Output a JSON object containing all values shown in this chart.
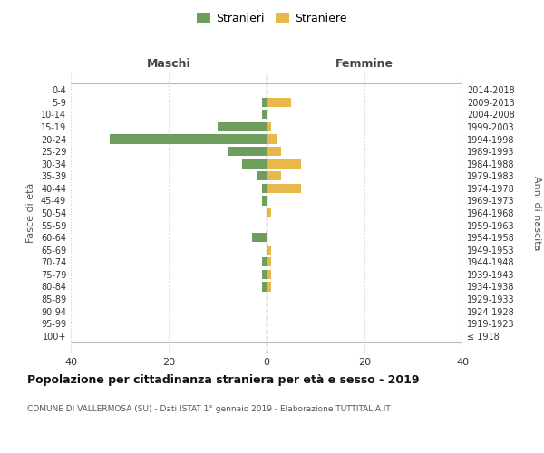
{
  "age_groups": [
    "100+",
    "95-99",
    "90-94",
    "85-89",
    "80-84",
    "75-79",
    "70-74",
    "65-69",
    "60-64",
    "55-59",
    "50-54",
    "45-49",
    "40-44",
    "35-39",
    "30-34",
    "25-29",
    "20-24",
    "15-19",
    "10-14",
    "5-9",
    "0-4"
  ],
  "birth_years": [
    "≤ 1918",
    "1919-1923",
    "1924-1928",
    "1929-1933",
    "1934-1938",
    "1939-1943",
    "1944-1948",
    "1949-1953",
    "1954-1958",
    "1959-1963",
    "1964-1968",
    "1969-1973",
    "1974-1978",
    "1979-1983",
    "1984-1988",
    "1989-1993",
    "1994-1998",
    "1999-2003",
    "2004-2008",
    "2009-2013",
    "2014-2018"
  ],
  "maschi": [
    0,
    0,
    0,
    0,
    1,
    1,
    1,
    0,
    3,
    0,
    0,
    1,
    1,
    2,
    5,
    8,
    32,
    10,
    1,
    1,
    0
  ],
  "femmine": [
    0,
    0,
    0,
    0,
    1,
    1,
    1,
    1,
    0,
    0,
    1,
    0,
    7,
    3,
    7,
    3,
    2,
    1,
    0,
    5,
    0
  ],
  "color_maschi": "#6d9e5e",
  "color_femmine": "#e8b84b",
  "background_color": "#ffffff",
  "grid_color": "#cccccc",
  "center_line_color": "#999966",
  "xlim": 40,
  "title": "Popolazione per cittadinanza straniera per età e sesso - 2019",
  "subtitle": "COMUNE DI VALLERMOSA (SU) - Dati ISTAT 1° gennaio 2019 - Elaborazione TUTTITALIA.IT",
  "ylabel_left": "Fasce di età",
  "ylabel_right": "Anni di nascita",
  "xlabel_maschi": "Maschi",
  "xlabel_femmine": "Femmine",
  "legend_stranieri": "Stranieri",
  "legend_straniere": "Straniere"
}
